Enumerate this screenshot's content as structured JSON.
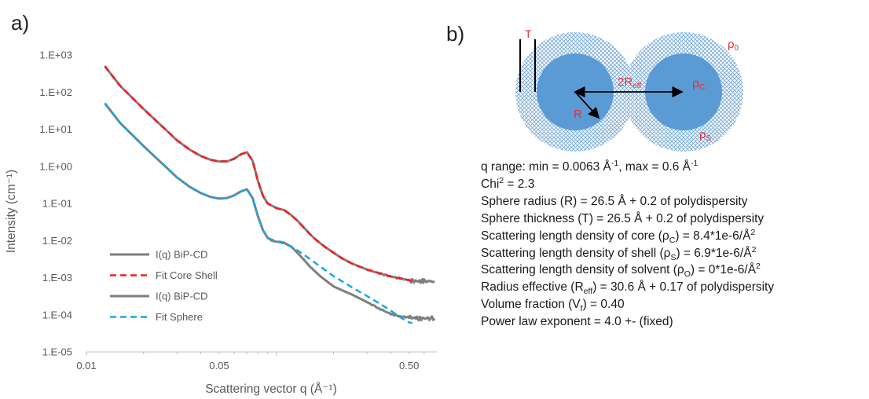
{
  "panel_a": {
    "label": "a)"
  },
  "panel_b": {
    "label": "b)"
  },
  "chart_data": {
    "type": "line",
    "xscale": "log",
    "yscale": "log",
    "xlabel": "Scattering vector q (Å⁻¹)",
    "ylabel": "Intensity (cm⁻¹)",
    "xlim": [
      0.01,
      0.7
    ],
    "ylim": [
      1e-05,
      1000
    ],
    "x_ticks": [
      {
        "value": 0.01,
        "label": "0.01"
      },
      {
        "value": 0.05,
        "label": "0.05"
      },
      {
        "value": 0.5,
        "label": "0.50"
      }
    ],
    "y_ticks": [
      {
        "value": 1000,
        "label": "1.E+03"
      },
      {
        "value": 100,
        "label": "1.E+02"
      },
      {
        "value": 10,
        "label": "1.E+01"
      },
      {
        "value": 1,
        "label": "1.E+00"
      },
      {
        "value": 0.1,
        "label": "1.E-01"
      },
      {
        "value": 0.01,
        "label": "1.E-02"
      },
      {
        "value": 0.001,
        "label": "1.E-03"
      },
      {
        "value": 0.0001,
        "label": "1.E-04"
      },
      {
        "value": 1e-05,
        "label": "1.E-05"
      }
    ],
    "grid": false,
    "legend_position": "bottom-left",
    "series": [
      {
        "name": "I(q) BiP-CD",
        "color": "#7f7f7f",
        "style": "solid",
        "noise": true,
        "x": [
          0.0125,
          0.015,
          0.02,
          0.025,
          0.03,
          0.035,
          0.04,
          0.045,
          0.05,
          0.055,
          0.06,
          0.065,
          0.07,
          0.075,
          0.08,
          0.085,
          0.09,
          0.1,
          0.11,
          0.12,
          0.13,
          0.14,
          0.15,
          0.16,
          0.17,
          0.18,
          0.2,
          0.22,
          0.25,
          0.3,
          0.35,
          0.4,
          0.45,
          0.5,
          0.55,
          0.6,
          0.68
        ],
        "y": [
          500,
          150,
          35,
          12,
          5,
          2.8,
          1.9,
          1.5,
          1.35,
          1.36,
          1.6,
          2.1,
          2.4,
          1.4,
          0.4,
          0.16,
          0.1,
          0.075,
          0.066,
          0.048,
          0.033,
          0.022,
          0.015,
          0.011,
          0.0085,
          0.0068,
          0.0047,
          0.0034,
          0.0024,
          0.00165,
          0.0013,
          0.00108,
          0.00095,
          0.00085,
          0.0008,
          0.0008,
          0.0008
        ]
      },
      {
        "name": "Fit Core Shell",
        "color": "#ff1a1a",
        "style": "dashed",
        "noise": false,
        "x": [
          0.0125,
          0.015,
          0.02,
          0.025,
          0.03,
          0.035,
          0.04,
          0.045,
          0.05,
          0.055,
          0.06,
          0.065,
          0.07,
          0.075,
          0.08,
          0.085,
          0.09,
          0.1,
          0.11,
          0.12,
          0.13,
          0.14,
          0.15,
          0.16,
          0.17,
          0.18,
          0.2,
          0.22,
          0.25,
          0.3,
          0.35,
          0.4,
          0.45,
          0.5,
          0.53
        ],
        "y": [
          500,
          150,
          35,
          12,
          5,
          2.8,
          1.9,
          1.5,
          1.35,
          1.36,
          1.6,
          2.1,
          2.4,
          1.4,
          0.4,
          0.16,
          0.1,
          0.075,
          0.066,
          0.048,
          0.033,
          0.022,
          0.015,
          0.011,
          0.0085,
          0.0068,
          0.0047,
          0.0034,
          0.0024,
          0.00165,
          0.0013,
          0.00108,
          0.00095,
          0.00085,
          0.00078
        ]
      },
      {
        "name": "I(q) BiP-CD",
        "color": "#7f7f7f",
        "style": "solid",
        "noise": true,
        "x": [
          0.0125,
          0.015,
          0.02,
          0.025,
          0.03,
          0.035,
          0.04,
          0.045,
          0.05,
          0.055,
          0.06,
          0.065,
          0.07,
          0.075,
          0.08,
          0.085,
          0.09,
          0.095,
          0.1,
          0.105,
          0.11,
          0.12,
          0.13,
          0.14,
          0.15,
          0.17,
          0.2,
          0.25,
          0.3,
          0.35,
          0.4,
          0.45,
          0.5,
          0.55,
          0.6,
          0.68
        ],
        "y": [
          50,
          15,
          3.5,
          1.2,
          0.5,
          0.28,
          0.19,
          0.15,
          0.135,
          0.14,
          0.165,
          0.21,
          0.24,
          0.14,
          0.045,
          0.019,
          0.0118,
          0.0098,
          0.0093,
          0.0092,
          0.0087,
          0.0068,
          0.0045,
          0.003,
          0.002,
          0.0011,
          0.00058,
          0.00035,
          0.00022,
          0.000145,
          0.000105,
          9e-05,
          8.5e-05,
          8e-05,
          8e-05,
          8e-05
        ]
      },
      {
        "name": "Fit Sphere",
        "color": "#1aa7e0",
        "style": "dashed",
        "noise": false,
        "x": [
          0.0125,
          0.015,
          0.02,
          0.025,
          0.03,
          0.035,
          0.04,
          0.045,
          0.05,
          0.055,
          0.06,
          0.065,
          0.07,
          0.075,
          0.08,
          0.085,
          0.09,
          0.1,
          0.11,
          0.12,
          0.13,
          0.14,
          0.15,
          0.17,
          0.2,
          0.25,
          0.3,
          0.35,
          0.4,
          0.45,
          0.5,
          0.52
        ],
        "y": [
          50,
          15,
          3.5,
          1.2,
          0.5,
          0.28,
          0.19,
          0.15,
          0.135,
          0.14,
          0.165,
          0.21,
          0.24,
          0.14,
          0.045,
          0.019,
          0.0118,
          0.0095,
          0.0082,
          0.0068,
          0.0053,
          0.0041,
          0.0032,
          0.002,
          0.0011,
          0.00055,
          0.00032,
          0.0002,
          0.00013,
          8.5e-05,
          6.2e-05,
          6e-05
        ]
      }
    ]
  },
  "diagram": {
    "label_T": "T",
    "label_rho0": "ρ",
    "label_rho0_sub": "0",
    "label_2": "2R",
    "label_2_sub": "eff",
    "label_rhoC": "ρ",
    "label_rhoC_sub": "C",
    "label_R": "R",
    "label_rhoS": "ρ",
    "label_rhoS_sub": "S",
    "core_color": "#5b9bd5",
    "shell_color": "#5b9bd5",
    "label_color": "#e03030"
  },
  "params": {
    "l1_a": "q range: min = 0.0063 Å",
    "l1_sup1": "-1",
    "l1_b": ", max = 0.6 Å",
    "l1_sup2": "-1",
    "l2_a": "Chi",
    "l2_sup": "2",
    "l2_b": " = 2.3",
    "l3": "Sphere radius (R) = 26.5 Å + 0.2 of polydispersity",
    "l4": "Sphere thickness (T) = 26.5 Å + 0.2 of polydispersity",
    "l5_a": "Scattering length density of core (ρ",
    "l5_sub": "C",
    "l5_b": ") = 8.4*1e-6/Å",
    "l5_sup": "2",
    "l6_a": "Scattering length density of shell (ρ",
    "l6_sub": "S",
    "l6_b": ") = 6.9*1e-6/Å",
    "l6_sup": "2",
    "l7_a": "Scattering length density of solvent (ρ",
    "l7_sub": "O",
    "l7_b": ") = 0*1e-6/Å",
    "l7_sup": "2",
    "l8_a": "Radius effective (R",
    "l8_sub": "eff",
    "l8_b": ") = 30.6 Å + 0.17 of polydispersity",
    "l9_a": "Volume fraction (V",
    "l9_sub": "f",
    "l9_b": ") = 0.40",
    "l10": "Power law exponent = 4.0 +- (fixed)"
  }
}
